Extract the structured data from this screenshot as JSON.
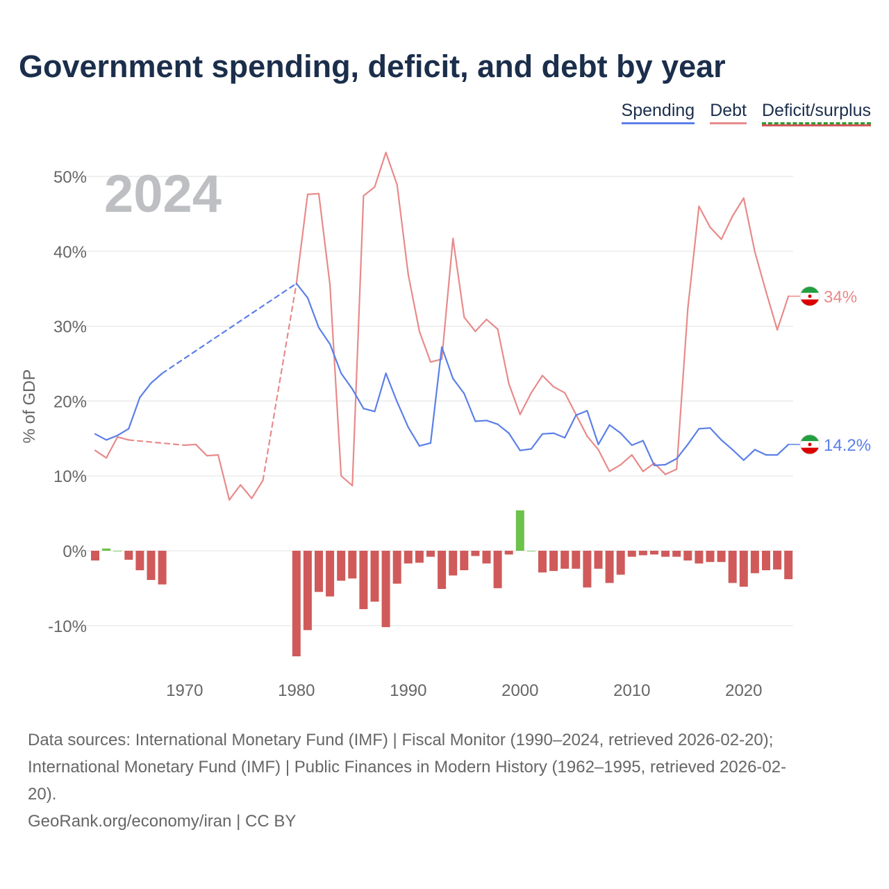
{
  "title": "Government spending, deficit, and debt by year",
  "legend": {
    "spending": "Spending",
    "debt": "Debt",
    "deficit": "Deficit/surplus"
  },
  "year_label": "2024",
  "end_labels": {
    "debt": "34%",
    "spending": "14.2%"
  },
  "footer": {
    "line1": "Data sources: International Monetary Fund (IMF) | Fiscal Monitor (1990–2024, retrieved 2026-02-20);",
    "line2": "International Monetary Fund (IMF) | Public Finances in Modern History (1962–1995, retrieved 2026-02-",
    "line3": "20).",
    "line4": "GeoRank.org/economy/iran | CC BY"
  },
  "colors": {
    "spending": "#5b7fe8",
    "debt": "#e88a8a",
    "deficit": "#d05a5a",
    "surplus": "#6cc24a"
  },
  "chart_data": {
    "type": "line+bar",
    "ylabel": "% of GDP",
    "ylim": [
      -15,
      55
    ],
    "yticks": [
      -10,
      0,
      10,
      20,
      30,
      40,
      50
    ],
    "ytick_labels": [
      "-10%",
      "0%",
      "10%",
      "20%",
      "30%",
      "40%",
      "50%"
    ],
    "xlim": [
      1962,
      2024
    ],
    "xticks": [
      1970,
      1980,
      1990,
      2000,
      2010,
      2020
    ],
    "xtick_labels": [
      "1970",
      "1980",
      "1990",
      "2000",
      "2010",
      "2020"
    ],
    "spending": {
      "1962": 15.6,
      "1963": 14.8,
      "1964": 15.4,
      "1965": 16.3,
      "1966": 20.5,
      "1967": 22.4,
      "1968": 23.7,
      "1980": 35.7,
      "1981": 33.8,
      "1982": 29.8,
      "1983": 27.6,
      "1984": 23.7,
      "1985": 21.6,
      "1986": 19.0,
      "1987": 18.6,
      "1988": 23.7,
      "1989": 19.9,
      "1990": 16.5,
      "1991": 14.0,
      "1992": 14.4,
      "1993": 27.2,
      "1994": 23.0,
      "1995": 21.0,
      "1996": 17.3,
      "1997": 17.4,
      "1998": 16.9,
      "1999": 15.7,
      "2000": 13.4,
      "2001": 13.6,
      "2002": 15.6,
      "2003": 15.7,
      "2004": 15.1,
      "2005": 18.1,
      "2006": 18.7,
      "2007": 14.2,
      "2008": 16.8,
      "2009": 15.7,
      "2010": 14.1,
      "2011": 14.7,
      "2012": 11.4,
      "2013": 11.5,
      "2014": 12.3,
      "2015": 14.2,
      "2016": 16.3,
      "2017": 16.4,
      "2018": 14.8,
      "2019": 13.5,
      "2020": 12.1,
      "2021": 13.5,
      "2022": 12.8,
      "2023": 12.8,
      "2024": 14.2
    },
    "debt": {
      "1962": 13.4,
      "1963": 12.4,
      "1964": 15.2,
      "1965": 14.8,
      "1970": 14.1,
      "1971": 14.2,
      "1972": 12.7,
      "1973": 12.8,
      "1974": 6.8,
      "1975": 8.8,
      "1976": 7.0,
      "1977": 9.4,
      "1980": 35.7,
      "1981": 47.6,
      "1982": 47.7,
      "1983": 35.5,
      "1984": 10.0,
      "1985": 8.7,
      "1986": 47.4,
      "1987": 48.6,
      "1988": 53.2,
      "1989": 48.9,
      "1990": 36.9,
      "1991": 29.3,
      "1992": 25.2,
      "1993": 25.6,
      "1994": 41.7,
      "1995": 31.2,
      "1996": 29.3,
      "1997": 30.9,
      "1998": 29.6,
      "1999": 22.3,
      "2000": 18.2,
      "2001": 21.1,
      "2002": 23.4,
      "2003": 21.9,
      "2004": 21.1,
      "2005": 18.2,
      "2006": 15.3,
      "2007": 13.5,
      "2008": 10.6,
      "2009": 11.5,
      "2010": 12.8,
      "2011": 10.6,
      "2012": 11.7,
      "2013": 10.2,
      "2014": 10.9,
      "2015": 32.3,
      "2016": 46.0,
      "2017": 43.2,
      "2018": 41.6,
      "2019": 44.7,
      "2020": 47.1,
      "2021": 39.9,
      "2022": 34.6,
      "2023": 29.5,
      "2024": 34.0
    },
    "deficit": {
      "1962": -1.3,
      "1963": 0.3,
      "1964": 0.0,
      "1965": -1.2,
      "1966": -2.6,
      "1967": -3.9,
      "1968": -4.5,
      "1980": -14.1,
      "1981": -10.6,
      "1982": -5.5,
      "1983": -6.1,
      "1984": -4.0,
      "1985": -3.7,
      "1986": -7.8,
      "1987": -6.8,
      "1988": -10.2,
      "1989": -4.4,
      "1990": -1.7,
      "1991": -1.6,
      "1992": -0.8,
      "1993": -5.1,
      "1994": -3.3,
      "1995": -2.6,
      "1996": -0.7,
      "1997": -1.7,
      "1998": -5.0,
      "1999": -0.5,
      "2000": 5.4,
      "2001": 0.0,
      "2002": -2.9,
      "2003": -2.7,
      "2004": -2.4,
      "2005": -2.4,
      "2006": -4.9,
      "2007": -2.4,
      "2008": -4.3,
      "2009": -3.2,
      "2010": -0.8,
      "2011": -0.6,
      "2012": -0.5,
      "2013": -0.8,
      "2014": -0.8,
      "2015": -1.3,
      "2016": -1.7,
      "2017": -1.5,
      "2018": -1.5,
      "2019": -4.3,
      "2020": -4.8,
      "2021": -3.0,
      "2022": -2.6,
      "2023": -2.5,
      "2024": -3.8
    }
  }
}
